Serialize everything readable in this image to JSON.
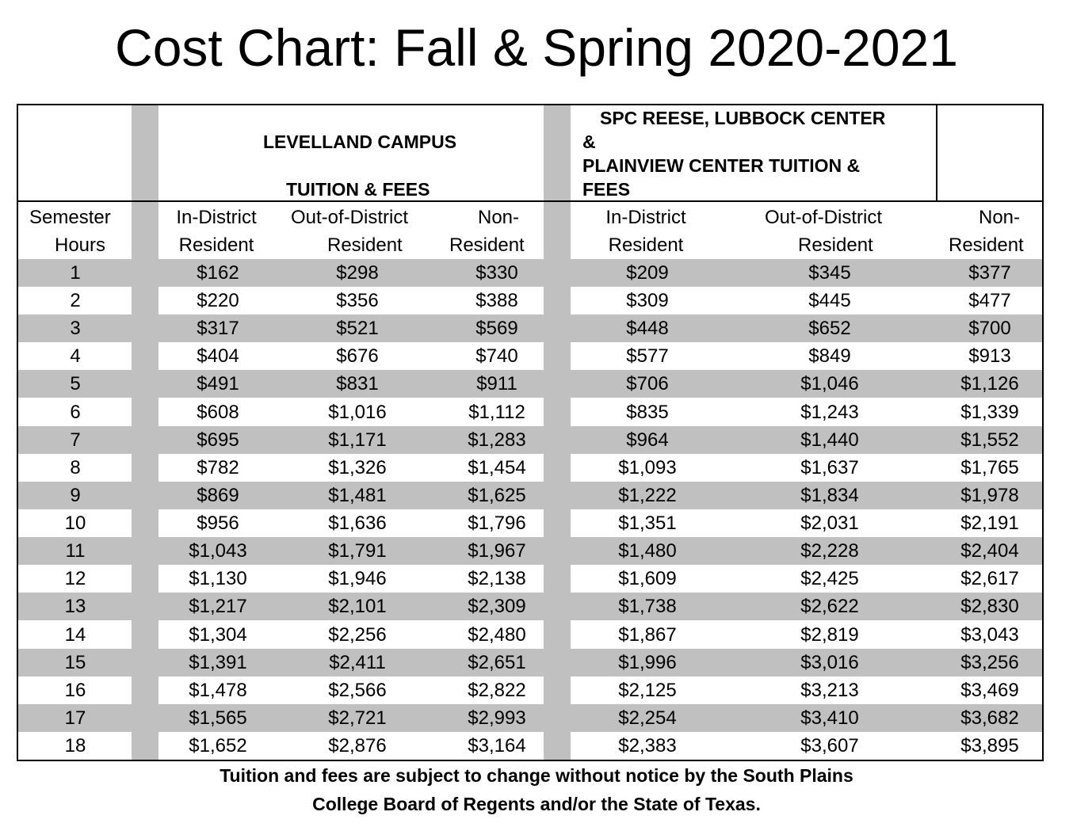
{
  "title": "Cost Chart: Fall & Spring 2020-2021",
  "table": {
    "group_levelland": {
      "line1": "LEVELLAND CAMPUS",
      "line2": "TUITION & FEES"
    },
    "group_reese": {
      "line1": "SPC REESE, LUBBOCK CENTER",
      "line2": "&",
      "line3": "PLAINVIEW CENTER TUITION &",
      "line4": "FEES"
    },
    "columns": [
      {
        "line1": "Semester",
        "line2": "Hours"
      },
      {
        "line1": "In-District",
        "line2": "Resident"
      },
      {
        "line1": "Out-of-District",
        "line2": "Resident"
      },
      {
        "line1": "Non-",
        "line2": "Resident"
      },
      {
        "line1": "In-District",
        "line2": "Resident"
      },
      {
        "line1": "Out-of-District",
        "line2": "Resident"
      },
      {
        "line1": "Non-",
        "line2": "Resident"
      }
    ],
    "rows": [
      [
        "1",
        "$162",
        "$298",
        "$330",
        "$209",
        "$345",
        "$377"
      ],
      [
        "2",
        "$220",
        "$356",
        "$388",
        "$309",
        "$445",
        "$477"
      ],
      [
        "3",
        "$317",
        "$521",
        "$569",
        "$448",
        "$652",
        "$700"
      ],
      [
        "4",
        "$404",
        "$676",
        "$740",
        "$577",
        "$849",
        "$913"
      ],
      [
        "5",
        "$491",
        "$831",
        "$911",
        "$706",
        "$1,046",
        "$1,126"
      ],
      [
        "6",
        "$608",
        "$1,016",
        "$1,112",
        "$835",
        "$1,243",
        "$1,339"
      ],
      [
        "7",
        "$695",
        "$1,171",
        "$1,283",
        "$964",
        "$1,440",
        "$1,552"
      ],
      [
        "8",
        "$782",
        "$1,326",
        "$1,454",
        "$1,093",
        "$1,637",
        "$1,765"
      ],
      [
        "9",
        "$869",
        "$1,481",
        "$1,625",
        "$1,222",
        "$1,834",
        "$1,978"
      ],
      [
        "10",
        "$956",
        "$1,636",
        "$1,796",
        "$1,351",
        "$2,031",
        "$2,191"
      ],
      [
        "11",
        "$1,043",
        "$1,791",
        "$1,967",
        "$1,480",
        "$2,228",
        "$2,404"
      ],
      [
        "12",
        "$1,130",
        "$1,946",
        "$2,138",
        "$1,609",
        "$2,425",
        "$2,617"
      ],
      [
        "13",
        "$1,217",
        "$2,101",
        "$2,309",
        "$1,738",
        "$2,622",
        "$2,830"
      ],
      [
        "14",
        "$1,304",
        "$2,256",
        "$2,480",
        "$1,867",
        "$2,819",
        "$3,043"
      ],
      [
        "15",
        "$1,391",
        "$2,411",
        "$2,651",
        "$1,996",
        "$3,016",
        "$3,256"
      ],
      [
        "16",
        "$1,478",
        "$2,566",
        "$2,822",
        "$2,125",
        "$3,213",
        "$3,469"
      ],
      [
        "17",
        "$1,565",
        "$2,721",
        "$2,993",
        "$2,254",
        "$3,410",
        "$3,682"
      ],
      [
        "18",
        "$1,652",
        "$2,876",
        "$3,164",
        "$2,383",
        "$3,607",
        "$3,895"
      ]
    ]
  },
  "footnote": {
    "line1": "Tuition and fees are subject to change without notice by the South Plains",
    "line2": "College Board of Regents and/or the State of Texas."
  }
}
